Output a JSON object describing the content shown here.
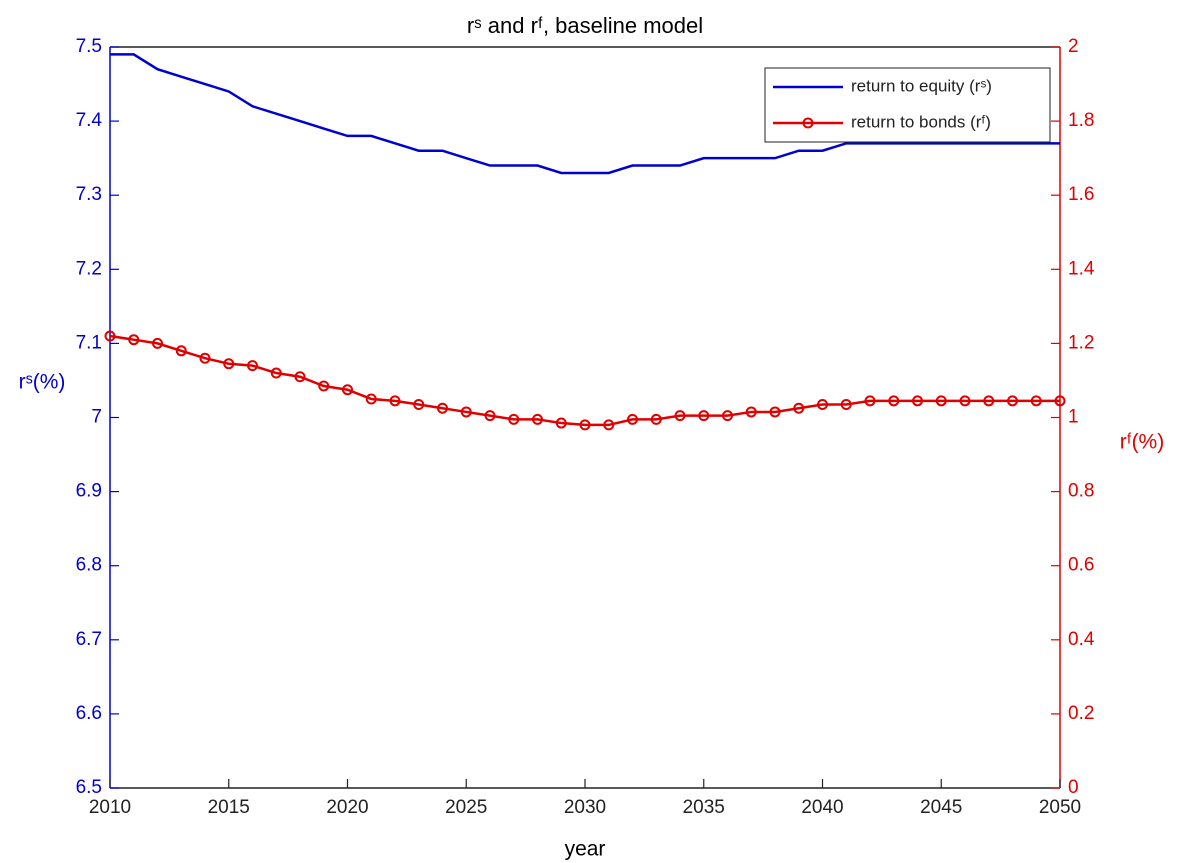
{
  "chart_data": {
    "type": "line",
    "title": "rˢ and rᶠ, baseline model",
    "x_label": "year",
    "y_label": "rˢ(%)",
    "y2_label": "rᶠ(%)",
    "x": [
      2010,
      2011,
      2012,
      2013,
      2014,
      2015,
      2016,
      2017,
      2018,
      2019,
      2020,
      2021,
      2022,
      2023,
      2024,
      2025,
      2026,
      2027,
      2028,
      2029,
      2030,
      2031,
      2032,
      2033,
      2034,
      2035,
      2036,
      2037,
      2038,
      2039,
      2040,
      2041,
      2042,
      2043,
      2044,
      2045,
      2046,
      2047,
      2048,
      2049,
      2050
    ],
    "series": [
      {
        "name": "return to equity (rˢ)",
        "color": "#0000d0",
        "axis": "y",
        "marker": false,
        "values": [
          7.49,
          7.49,
          7.47,
          7.46,
          7.45,
          7.44,
          7.42,
          7.41,
          7.4,
          7.39,
          7.38,
          7.38,
          7.37,
          7.36,
          7.36,
          7.35,
          7.34,
          7.34,
          7.34,
          7.33,
          7.33,
          7.33,
          7.34,
          7.34,
          7.34,
          7.35,
          7.35,
          7.35,
          7.35,
          7.36,
          7.36,
          7.37,
          7.37,
          7.37,
          7.37,
          7.37,
          7.37,
          7.37,
          7.37,
          7.37,
          7.37
        ]
      },
      {
        "name": "return to bonds (rᶠ)",
        "color": "#e00000",
        "axis": "y2",
        "marker": true,
        "values": [
          1.22,
          1.21,
          1.2,
          1.18,
          1.16,
          1.145,
          1.14,
          1.12,
          1.11,
          1.085,
          1.075,
          1.05,
          1.045,
          1.035,
          1.025,
          1.015,
          1.005,
          0.995,
          0.995,
          0.985,
          0.98,
          0.98,
          0.995,
          0.995,
          1.005,
          1.005,
          1.005,
          1.015,
          1.015,
          1.025,
          1.035,
          1.035,
          1.045,
          1.045,
          1.045,
          1.045,
          1.045,
          1.045,
          1.045,
          1.045,
          1.045
        ]
      }
    ],
    "xlim": [
      2010,
      2050
    ],
    "xticks": [
      2010,
      2015,
      2020,
      2025,
      2030,
      2035,
      2040,
      2045,
      2050
    ],
    "ylim": [
      6.5,
      7.5
    ],
    "yticks": [
      6.5,
      6.6,
      6.7,
      6.8,
      6.9,
      7,
      7.1,
      7.2,
      7.3,
      7.4,
      7.5
    ],
    "y2lim": [
      0,
      2
    ],
    "y2ticks": [
      0,
      0.2,
      0.4,
      0.6,
      0.8,
      1,
      1.2,
      1.4,
      1.6,
      1.8,
      2
    ],
    "y_axis_color": "#0000d0",
    "y2_axis_color": "#e00000",
    "legend": "upper right",
    "grid": false
  }
}
